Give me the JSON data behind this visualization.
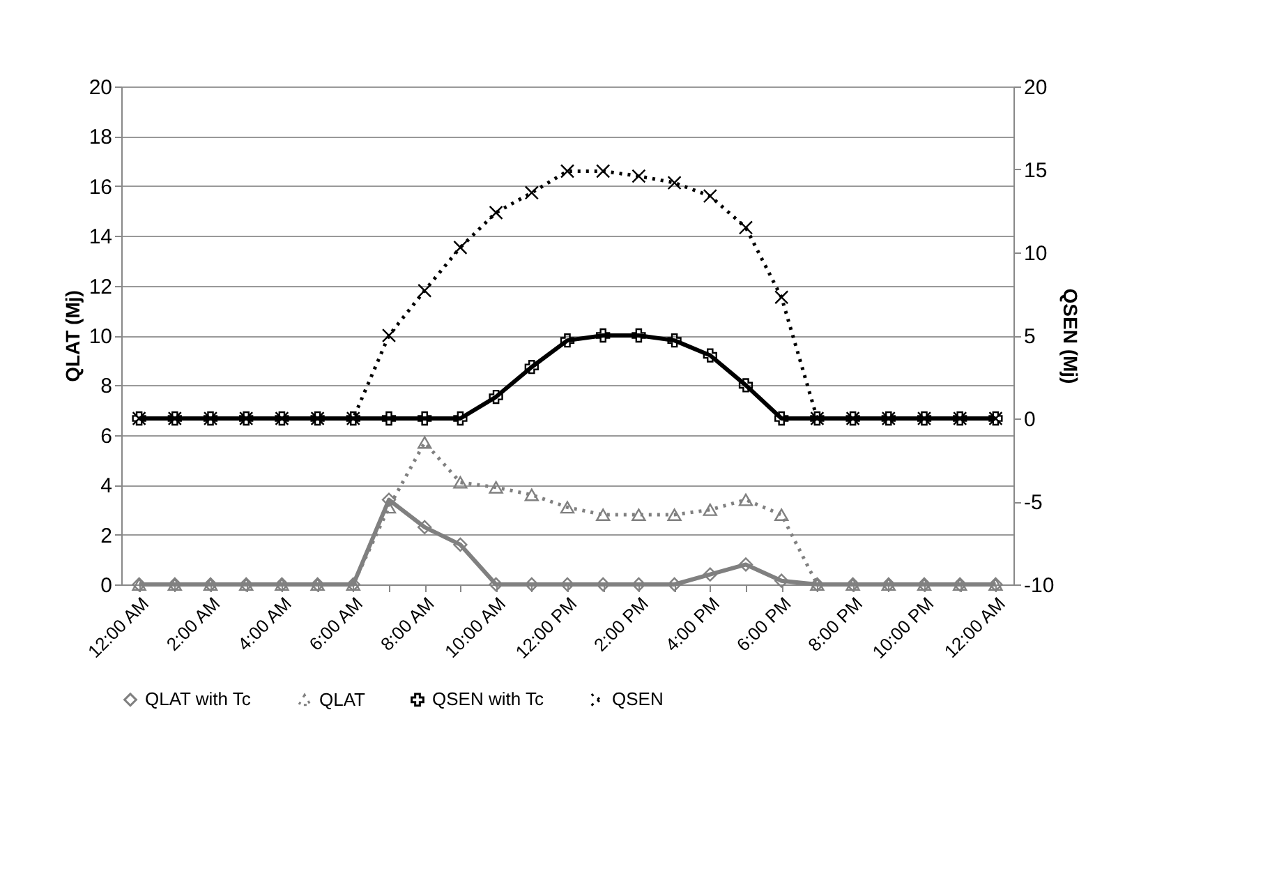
{
  "chart_data": {
    "type": "line",
    "ylabel": "QLAT (Mj)",
    "y2label": "QSEN (Mj)",
    "categories": [
      "12:00 AM",
      null,
      "2:00 AM",
      null,
      "4:00 AM",
      null,
      "6:00 AM",
      null,
      "8:00 AM",
      null,
      "10:00 AM",
      null,
      "12:00 PM",
      null,
      "2:00 PM",
      null,
      "4:00 PM",
      null,
      "6:00 PM",
      null,
      "8:00 PM",
      null,
      "10:00 PM",
      null,
      "12:00 AM"
    ],
    "ylim": [
      0,
      20
    ],
    "yticks": [
      0,
      2,
      4,
      6,
      8,
      10,
      12,
      14,
      16,
      18,
      20
    ],
    "y2lim": [
      -10,
      20
    ],
    "y2ticks": [
      -10,
      -5,
      0,
      5,
      10,
      15,
      20
    ],
    "grid": "y",
    "legend": "bottom",
    "series": [
      {
        "name": "QLAT with Tc",
        "color": "#808080",
        "marker": "diamond",
        "line_style": "solid",
        "values": [
          0,
          0,
          0,
          0,
          0,
          0,
          0,
          3.4,
          2.3,
          1.6,
          0,
          0,
          0,
          0,
          0,
          0,
          0.4,
          0.8,
          0.15,
          0,
          0,
          0,
          0,
          0,
          0
        ]
      },
      {
        "name": "QLAT",
        "color": "#808080",
        "marker": "triangle",
        "line_style": "dotted",
        "values": [
          0,
          0,
          0,
          0,
          0,
          0,
          0,
          3.1,
          5.7,
          4.1,
          3.9,
          3.6,
          3.1,
          2.8,
          2.8,
          2.8,
          3.0,
          3.4,
          2.8,
          0,
          0,
          0,
          0,
          0,
          0
        ]
      },
      {
        "name": "QSEN with Tc",
        "color": "#000000",
        "marker": "plus",
        "line_style": "solid",
        "axis": "y2",
        "values": [
          0,
          0,
          0,
          0,
          0,
          0,
          0,
          0,
          0,
          0,
          1.3,
          3.1,
          4.7,
          5.0,
          5.0,
          4.7,
          3.8,
          2.0,
          0,
          0,
          0,
          0,
          0,
          0,
          0
        ]
      },
      {
        "name": "QSEN",
        "color": "#000000",
        "marker": "cross",
        "line_style": "dotted",
        "axis": "y2",
        "values": [
          0,
          0,
          0,
          0,
          0,
          0,
          0,
          5.0,
          7.7,
          10.3,
          12.4,
          13.6,
          14.9,
          14.9,
          14.6,
          14.2,
          13.4,
          11.5,
          7.3,
          0,
          0,
          0,
          0,
          0,
          0
        ]
      }
    ]
  }
}
